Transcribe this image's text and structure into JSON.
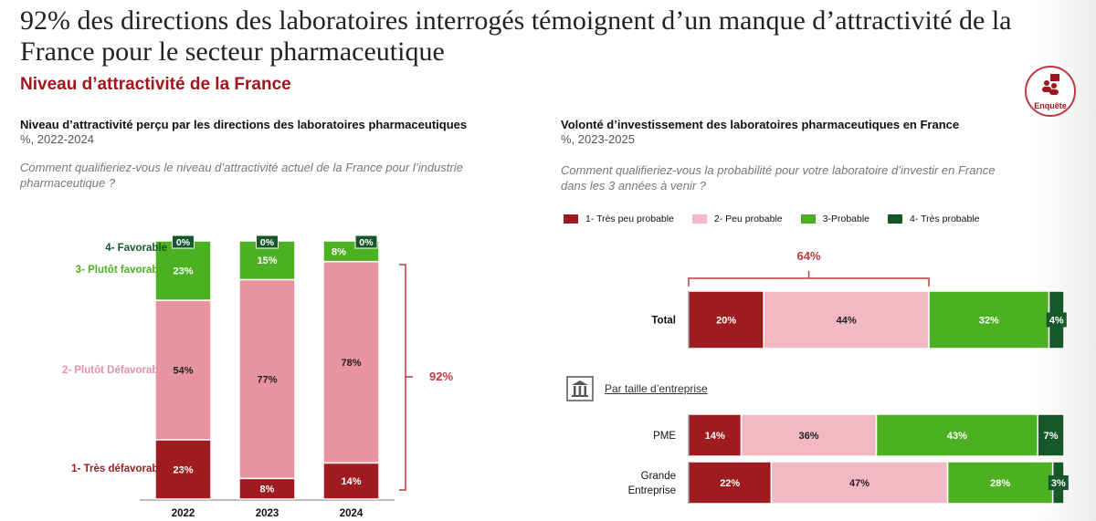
{
  "title": "92% des directions des laboratoires interrogés témoignent d’un manque d’attractivité de la France pour le secteur pharmaceutique",
  "subtitle": "Niveau d’attractivité de la France",
  "badge": {
    "label": "Enquête",
    "icon": "survey-people-icon"
  },
  "colors": {
    "dark_red": "#9e1b1f",
    "pink_left": "#e893a0",
    "pink_right": "#f2b8c3",
    "green": "#4cb122",
    "dark_green": "#16582a",
    "bracket": "#c0393e"
  },
  "chart_data": [
    {
      "type": "bar",
      "stacked": true,
      "orientation": "vertical",
      "title": "Niveau d’attractivité perçu par les directions des laboratoires pharmaceutiques",
      "unit": "%, 2022-2024",
      "question": "Comment qualifieriez-vous le niveau d’attractivité actuel de la France pour l’industrie pharmaceutique ?",
      "categories": [
        "2022",
        "2023",
        "2024"
      ],
      "series": [
        {
          "name": "1- Très défavorable",
          "values": [
            23,
            8,
            14
          ]
        },
        {
          "name": "2- Plutôt Défavorable",
          "values": [
            54,
            77,
            78
          ]
        },
        {
          "name": "3- Plutôt favorable",
          "values": [
            23,
            15,
            8
          ]
        },
        {
          "name": "4- Favorable",
          "values": [
            0,
            0,
            0
          ]
        }
      ],
      "ylim": [
        0,
        100
      ],
      "annotation": "92%"
    },
    {
      "type": "bar",
      "stacked": true,
      "orientation": "horizontal",
      "title": "Volonté d’investissement des laboratoires pharmaceutiques en France",
      "unit": "%, 2023-2025",
      "question": "Comment qualifieriez-vous la probabilité pour votre laboratoire d’investir en France dans les 3 années à venir ?",
      "legend": [
        "1- Très peu probable",
        "2- Peu probable",
        "3-Probable",
        "4- Très probable"
      ],
      "categories": [
        "Total",
        "PME",
        "Grande Entreprise"
      ],
      "series": [
        {
          "name": "1- Très peu probable",
          "values": [
            20,
            14,
            22
          ]
        },
        {
          "name": "2- Peu probable",
          "values": [
            44,
            36,
            47
          ]
        },
        {
          "name": "3-Probable",
          "values": [
            32,
            43,
            28
          ]
        },
        {
          "name": "4- Très probable",
          "values": [
            4,
            7,
            3
          ]
        }
      ],
      "xlim": [
        0,
        100
      ],
      "annotation": "64%",
      "group_label": "Par taille d’entreprise"
    }
  ]
}
